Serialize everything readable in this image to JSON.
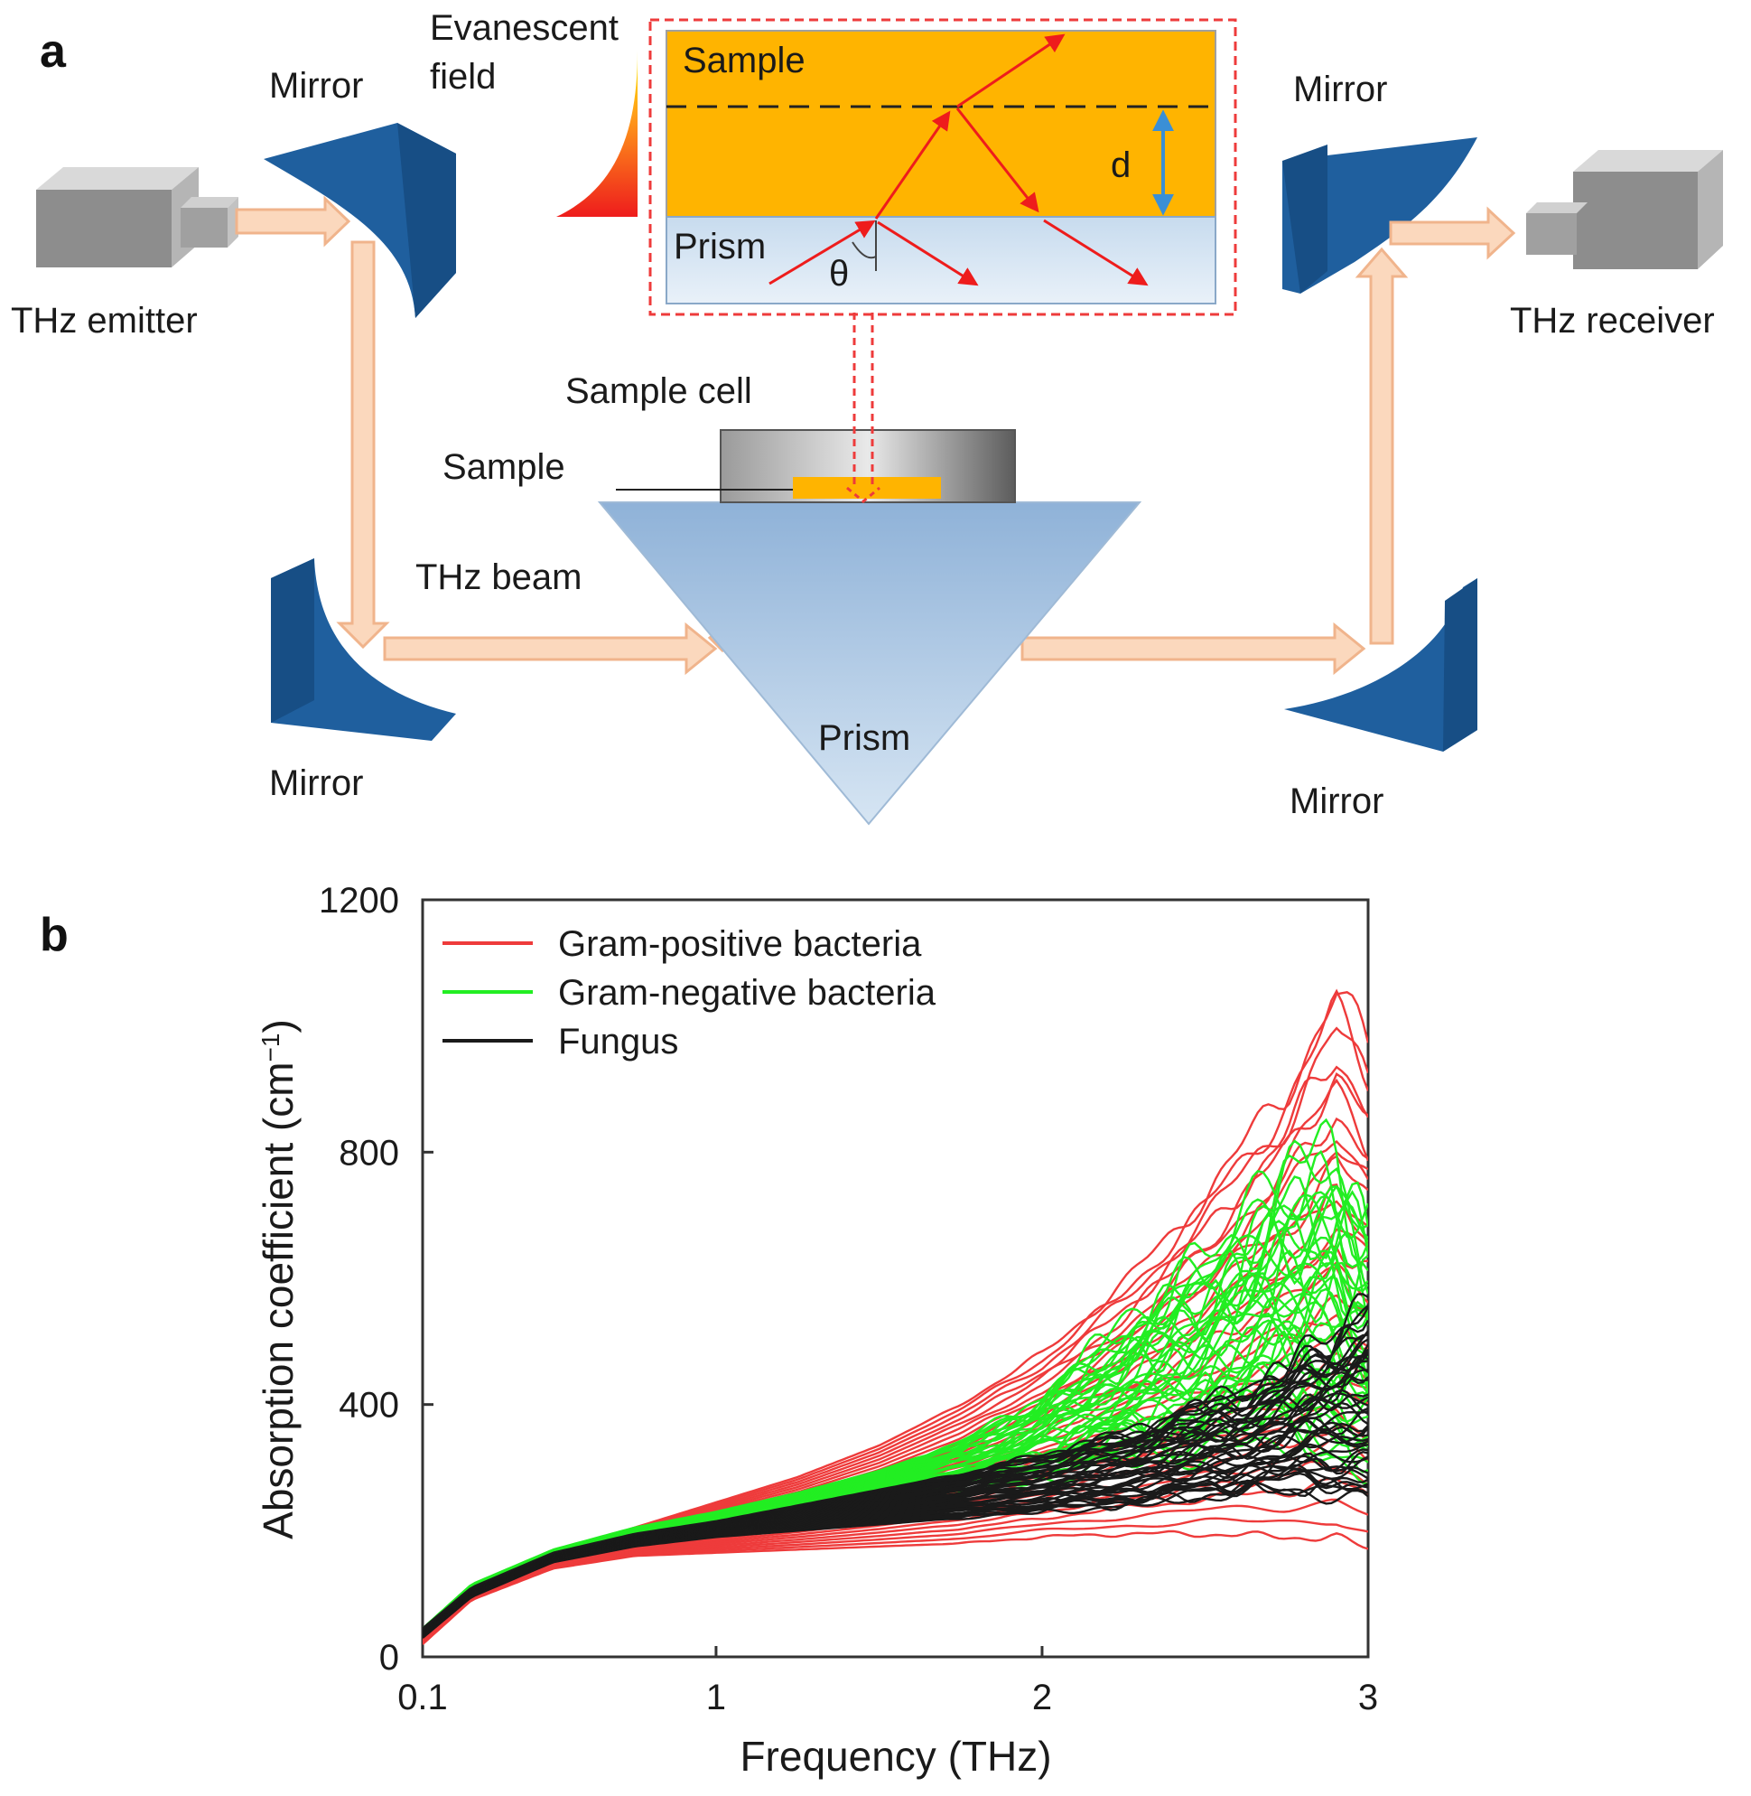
{
  "panel_a": {
    "letter": "a",
    "labels": {
      "evanescent_line1": "Evanescent",
      "evanescent_line2": "field",
      "mirror_top_left": "Mirror",
      "mirror_top_right": "Mirror",
      "mirror_bottom_left": "Mirror",
      "mirror_bottom_right": "Mirror",
      "thz_emitter": "THz emitter",
      "thz_receiver": "THz receiver",
      "inset_sample": "Sample",
      "inset_prism": "Prism",
      "inset_d": "d",
      "inset_theta": "θ",
      "sample_cell": "Sample cell",
      "sample": "Sample",
      "thz_beam": "THz beam",
      "prism": "Prism"
    },
    "colors": {
      "mirror": "#1f5f9e",
      "beam": "#f7c9a6",
      "sample": "#ffb400",
      "prism": "#a8c4e0",
      "ray": "#ee1c1c",
      "dashed_box": "#ee3b3b"
    }
  },
  "panel_b": {
    "letter": "b",
    "chart_data": {
      "type": "line",
      "title": "",
      "xlabel": "Frequency (THz)",
      "ylabel": "Absorption coefficient (cm",
      "ylabel_sup": "−1",
      "ylabel_end": ")",
      "x_ticks": [
        "0.1",
        "1",
        "2",
        "3"
      ],
      "x_tick_values": [
        0.1,
        1,
        2,
        3
      ],
      "y_ticks": [
        "0",
        "400",
        "800",
        "1200"
      ],
      "y_tick_values": [
        0,
        400,
        800,
        1200
      ],
      "xlim": [
        0.1,
        3
      ],
      "ylim": [
        0,
        1200
      ],
      "grid": false,
      "legend_position": "top-left",
      "legend": [
        "Gram-positive bacteria",
        "Gram-negative bacteria",
        "Fungus"
      ],
      "series": [
        {
          "name": "Gram-positive bacteria",
          "color": "#ee3b3b",
          "curve_count": 30,
          "x": [
            0.1,
            0.25,
            0.5,
            0.75,
            1.0,
            1.25,
            1.5,
            1.75,
            2.0,
            2.25,
            2.5,
            2.75,
            2.9,
            3.0
          ],
          "upper": [
            40,
            110,
            165,
            205,
            245,
            285,
            335,
            400,
            480,
            590,
            730,
            900,
            1050,
            960
          ],
          "lower": [
            20,
            90,
            140,
            160,
            165,
            170,
            175,
            180,
            190,
            195,
            195,
            190,
            190,
            170
          ]
        },
        {
          "name": "Gram-negative bacteria",
          "color": "#22ee22",
          "curve_count": 40,
          "x": [
            0.1,
            0.25,
            0.5,
            0.75,
            1.0,
            1.25,
            1.5,
            1.75,
            2.0,
            2.25,
            2.5,
            2.75,
            2.9,
            3.0
          ],
          "upper": [
            45,
            115,
            170,
            205,
            230,
            260,
            295,
            340,
            410,
            520,
            620,
            740,
            790,
            700
          ],
          "lower": [
            35,
            100,
            155,
            185,
            205,
            220,
            240,
            260,
            285,
            310,
            330,
            350,
            330,
            300
          ]
        },
        {
          "name": "Fungus",
          "color": "#1a1a1a",
          "curve_count": 45,
          "x": [
            0.1,
            0.25,
            0.5,
            0.75,
            1.0,
            1.25,
            1.5,
            1.75,
            2.0,
            2.25,
            2.5,
            2.75,
            2.9,
            3.0
          ],
          "upper": [
            45,
            110,
            165,
            195,
            215,
            240,
            265,
            290,
            320,
            355,
            400,
            450,
            520,
            560
          ],
          "lower": [
            30,
            95,
            150,
            175,
            190,
            200,
            210,
            220,
            230,
            240,
            255,
            265,
            260,
            250
          ]
        }
      ]
    }
  }
}
